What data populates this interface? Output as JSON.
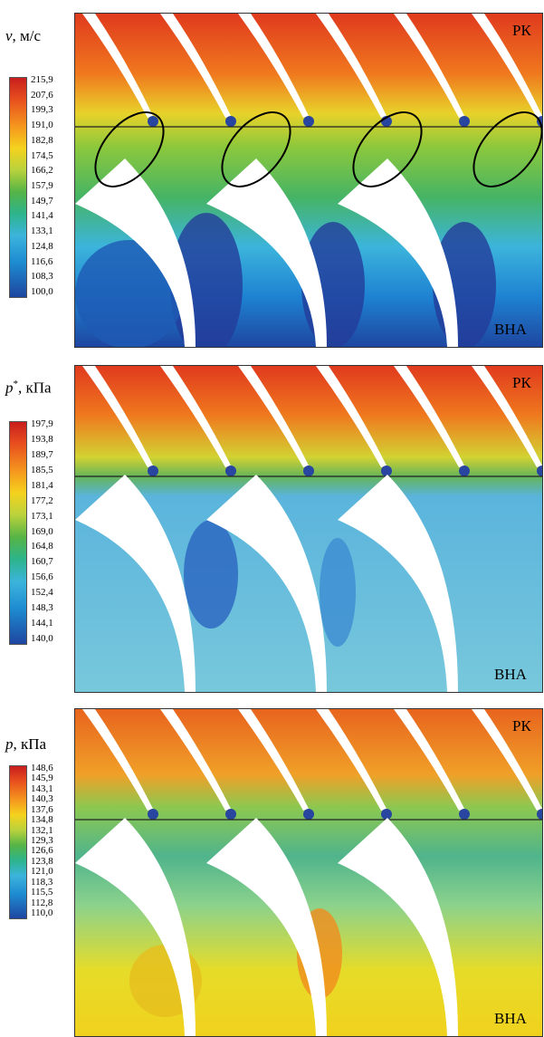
{
  "panels": [
    {
      "legend": {
        "symbol": "v",
        "sup": null,
        "unit": ", м/с",
        "ticks": [
          "215,9",
          "207,6",
          "199,3",
          "191,0",
          "182,8",
          "174,5",
          "166,2",
          "157,9",
          "149,7",
          "141,4",
          "133,1",
          "124,8",
          "116,6",
          "108,3",
          "100,0"
        ]
      },
      "top_label": "РК",
      "bottom_label": "ВНА"
    },
    {
      "legend": {
        "symbol": "p",
        "sup": "*",
        "unit": ", кПа",
        "ticks": [
          "197,9",
          "193,8",
          "189,7",
          "185,5",
          "181,4",
          "177,2",
          "173,1",
          "169,0",
          "164,8",
          "160,7",
          "156,6",
          "152,4",
          "148,3",
          "144,1",
          "140,0"
        ]
      },
      "top_label": "РК",
      "bottom_label": "ВНА"
    },
    {
      "legend": {
        "symbol": "p",
        "sup": null,
        "unit": ", кПа",
        "ticks": [
          "148,6",
          "145,9",
          "143,1",
          "140,3",
          "137,6",
          "134,8",
          "132,1",
          "129,3",
          "126,6",
          "123,8",
          "121,0",
          "118,3",
          "115,5",
          "112,8",
          "110,0"
        ]
      },
      "top_label": "РК",
      "bottom_label": "ВНА"
    }
  ]
}
